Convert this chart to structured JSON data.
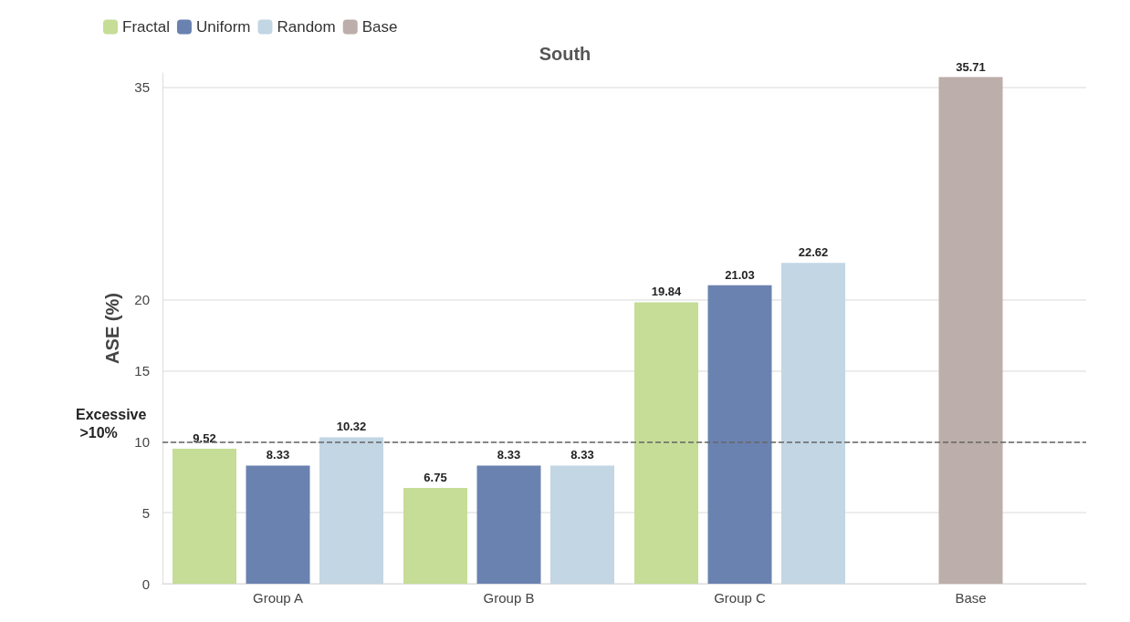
{
  "chart_data": {
    "type": "bar",
    "title": "South",
    "ylabel": "ASE (%)",
    "categories": [
      "Group A",
      "Group B",
      "Group C",
      "Base"
    ],
    "series": [
      {
        "name": "Fractal",
        "color": "#c5dd96",
        "values": [
          9.52,
          6.75,
          19.84,
          null
        ]
      },
      {
        "name": "Uniform",
        "color": "#6a82b0",
        "values": [
          8.33,
          8.33,
          21.03,
          null
        ]
      },
      {
        "name": "Random",
        "color": "#c2d6e4",
        "values": [
          10.32,
          8.33,
          22.62,
          null
        ]
      },
      {
        "name": "Base",
        "color": "#bcaeaa",
        "values": [
          null,
          null,
          null,
          35.71
        ]
      }
    ],
    "ylim": [
      0,
      36
    ],
    "yticks": [
      0,
      5,
      10,
      15,
      20,
      35
    ],
    "grid": "y",
    "legend": "top left",
    "data_labels": true,
    "ref_lines": [
      {
        "axis": "y",
        "value": 10,
        "label": "Excessive >10%",
        "color": "#666666",
        "line_style": "dashed"
      }
    ]
  }
}
